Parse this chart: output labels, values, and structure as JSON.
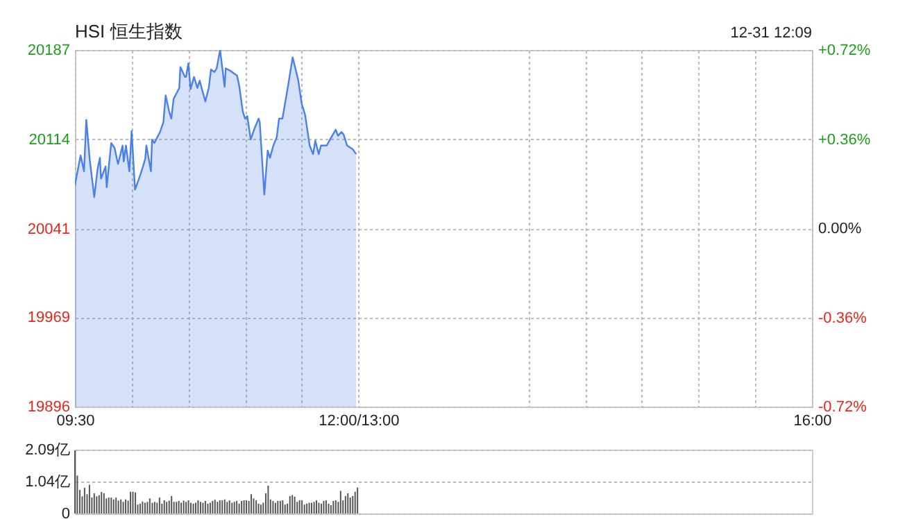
{
  "chart_data": [
    {
      "type": "area",
      "title": "HSI 恒生指数",
      "annotations": [
        "12-31 12:09"
      ],
      "x": [
        9.5,
        9.55,
        9.58,
        9.6,
        9.63,
        9.67,
        9.7,
        9.72,
        9.73,
        9.77,
        9.78,
        9.82,
        9.85,
        9.87,
        9.88,
        9.92,
        9.93,
        9.95,
        9.98,
        10,
        10.03,
        10.08,
        10.12,
        10.13,
        10.17,
        10.18,
        10.2,
        10.25,
        10.28,
        10.3,
        10.33,
        10.35,
        10.37,
        10.42,
        10.43,
        10.47,
        10.48,
        10.5,
        10.52,
        10.55,
        10.58,
        10.6,
        10.62,
        10.65,
        10.68,
        10.7,
        10.73,
        10.75,
        10.78,
        10.82,
        10.83,
        10.87,
        10.93,
        10.95,
        10.98,
        11,
        11.02,
        11.05,
        11.08,
        11.12,
        11.13,
        11.17,
        11.2,
        11.22,
        11.25,
        11.28,
        11.3,
        11.33,
        11.38,
        11.42,
        11.47,
        11.5,
        11.53,
        11.57,
        11.6,
        11.62,
        11.65,
        11.67,
        11.72,
        11.75,
        11.8,
        11.82,
        11.85,
        11.87,
        11.9,
        11.95,
        11.98
      ],
      "values": [
        20077,
        20101,
        20088,
        20130,
        20098,
        20067,
        20090,
        20099,
        20082,
        20092,
        20075,
        20111,
        20107,
        20098,
        20094,
        20109,
        20096,
        20109,
        20088,
        20121,
        20073,
        20086,
        20098,
        20109,
        20088,
        20114,
        20111,
        20120,
        20128,
        20150,
        20137,
        20131,
        20147,
        20156,
        20173,
        20165,
        20165,
        20176,
        20155,
        20165,
        20156,
        20162,
        20155,
        20145,
        20156,
        20171,
        20169,
        20172,
        20187,
        20157,
        20172,
        20170,
        20166,
        20157,
        20137,
        20131,
        20133,
        20114,
        20122,
        20131,
        20128,
        20069,
        20105,
        20099,
        20109,
        20116,
        20131,
        20131,
        20158,
        20181,
        20162,
        20143,
        20134,
        20109,
        20102,
        20113,
        20102,
        20109,
        20109,
        20114,
        20122,
        20117,
        20120,
        20118,
        20109,
        20106,
        20102
      ],
      "color": "#4a80e8",
      "xlim": [
        9.5,
        16
      ],
      "xticks": [
        {
          "value": 9.5,
          "label": "09:30"
        },
        {
          "value": 10,
          "label": null
        },
        {
          "value": 10.5,
          "label": null
        },
        {
          "value": 11,
          "label": null
        },
        {
          "value": 11.5,
          "label": null
        },
        {
          "value": 12,
          "label": "12:00/13:00"
        },
        {
          "value": 13.5,
          "label": null
        },
        {
          "value": 14,
          "label": null
        },
        {
          "value": 14.5,
          "label": null
        },
        {
          "value": 15,
          "label": null
        },
        {
          "value": 15.5,
          "label": null
        },
        {
          "value": 16,
          "label": "16:00"
        }
      ],
      "ylim": [
        19896,
        20187
      ],
      "yticks": [
        19896,
        19969,
        20041,
        20114,
        20187
      ],
      "y2lim": [
        -0.72,
        0.72
      ],
      "y2ticks": [
        {
          "value": -0.72,
          "label": "-0.72%"
        },
        {
          "value": -0.36,
          "label": "-0.36%"
        },
        {
          "value": 0,
          "label": "0.00%"
        },
        {
          "value": 0.36,
          "label": "+0.36%"
        },
        {
          "value": 0.72,
          "label": "+0.72%"
        }
      ],
      "grid": true
    },
    {
      "type": "bar",
      "x": [
        9.5,
        9.521,
        9.543,
        9.564,
        9.585,
        9.607,
        9.628,
        9.649,
        9.67,
        9.692,
        9.713,
        9.734,
        9.756,
        9.777,
        9.798,
        9.82,
        9.841,
        9.862,
        9.883,
        9.905,
        9.926,
        9.947,
        9.969,
        9.99,
        10.011,
        10.033,
        10.054,
        10.075,
        10.096,
        10.118,
        10.139,
        10.16,
        10.182,
        10.203,
        10.224,
        10.246,
        10.267,
        10.288,
        10.309,
        10.331,
        10.352,
        10.373,
        10.395,
        10.416,
        10.437,
        10.459,
        10.48,
        10.501,
        10.522,
        10.544,
        10.565,
        10.586,
        10.608,
        10.629,
        10.65,
        10.672,
        10.693,
        10.714,
        10.735,
        10.757,
        10.778,
        10.799,
        10.821,
        10.842,
        10.863,
        10.885,
        10.906,
        10.927,
        10.948,
        10.97,
        10.991,
        11.012,
        11.034,
        11.055,
        11.076,
        11.098,
        11.119,
        11.14,
        11.161,
        11.183,
        11.204,
        11.225,
        11.247,
        11.268,
        11.289,
        11.311,
        11.332,
        11.353,
        11.374,
        11.396,
        11.417,
        11.438,
        11.46,
        11.481,
        11.502,
        11.524,
        11.545,
        11.566,
        11.587,
        11.609,
        11.63,
        11.651,
        11.673,
        11.694,
        11.715,
        11.737,
        11.758,
        11.779,
        11.8,
        11.822,
        11.843,
        11.864,
        11.886,
        11.907,
        11.928,
        11.95,
        11.971,
        11.992
      ],
      "values": [
        2.06,
        1.24,
        0.77,
        0.56,
        0.84,
        0.63,
        0.94,
        0.52,
        0.66,
        0.56,
        0.6,
        0.7,
        0.66,
        0.49,
        0.52,
        0.52,
        0.46,
        0.52,
        0.42,
        0.46,
        0.38,
        0.46,
        0.42,
        0.71,
        0.71,
        0.69,
        0.29,
        0.32,
        0.39,
        0.35,
        0.38,
        0.49,
        0.35,
        0.38,
        0.35,
        0.52,
        0.32,
        0.43,
        0.38,
        0.42,
        0.57,
        0.38,
        0.38,
        0.41,
        0.35,
        0.42,
        0.38,
        0.43,
        0.35,
        0.32,
        0.35,
        0.43,
        0.38,
        0.35,
        0.41,
        0.32,
        0.35,
        0.41,
        0.45,
        0.38,
        0.43,
        0.43,
        0.46,
        0.38,
        0.43,
        0.35,
        0.38,
        0.41,
        0.32,
        0.41,
        0.43,
        0.43,
        0.41,
        0.63,
        0.49,
        0.43,
        0.32,
        0.29,
        0.35,
        0.66,
        0.91,
        0.46,
        0.41,
        0.35,
        0.41,
        0.41,
        0.43,
        0.29,
        0.32,
        0.57,
        0.6,
        0.55,
        0.38,
        0.43,
        0.43,
        0.29,
        0.32,
        0.35,
        0.35,
        0.38,
        0.43,
        0.35,
        0.32,
        0.41,
        0.43,
        0.32,
        0.27,
        0.41,
        0.43,
        0.38,
        0.74,
        0.43,
        0.57,
        0.66,
        0.52,
        0.57,
        0.71,
        0.85
      ],
      "color": "#555555",
      "xlim": [
        9.5,
        16
      ],
      "ylim": [
        0,
        2.09
      ],
      "yticks": [
        0,
        {
          "value": 1.04,
          "label": "1.04亿"
        },
        {
          "value": 2.09,
          "label": "2.09亿"
        }
      ],
      "grid": "y",
      "tick_labels": "y"
    }
  ]
}
